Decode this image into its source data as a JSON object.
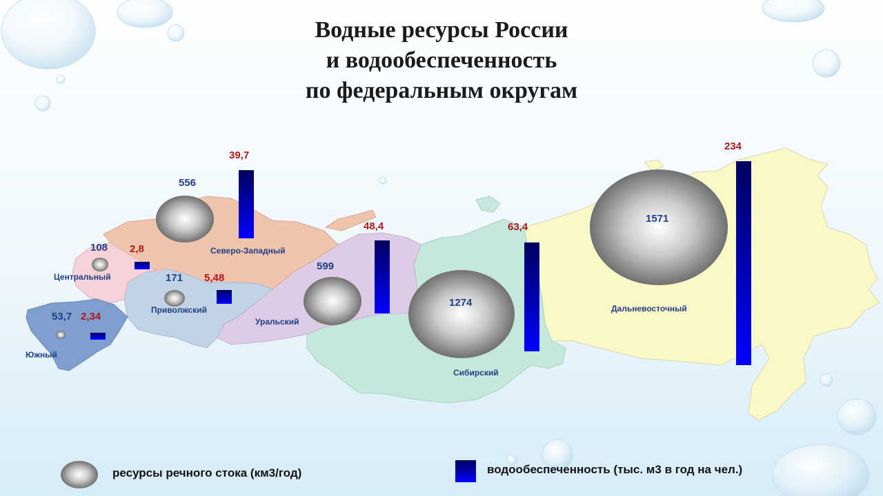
{
  "title": {
    "line1": "Водные ресурсы России",
    "line2": "и водообеспеченность",
    "line3": "по федеральным округам"
  },
  "regions": [
    {
      "name": "Южный",
      "runoff": "53,7",
      "supply": "2,34",
      "color": "#7f9fcf"
    },
    {
      "name": "Центральный",
      "runoff": "108",
      "supply": "2,8",
      "color": "#f6d2d8"
    },
    {
      "name": "Приволжский",
      "runoff": "171",
      "supply": "5,48",
      "color": "#c3d3e6"
    },
    {
      "name": "Северо-Западный",
      "runoff": "556",
      "supply": "39,7",
      "color": "#f0c3ad"
    },
    {
      "name": "Уральский",
      "runoff": "599",
      "supply": "48,4",
      "color": "#decbe6"
    },
    {
      "name": "Сибирский",
      "runoff": "1274",
      "supply": "63,4",
      "color": "#c6e8dc"
    },
    {
      "name": "Дальневосточный",
      "runoff": "1571",
      "supply": "234",
      "color": "#fbf8c8"
    }
  ],
  "legend": {
    "runoff_label": "ресурсы речного стока (км3/год)",
    "supply_label": "водообеспеченность (тыс. м3 в год на чел.)"
  },
  "colors": {
    "runoff_value": "#1f3f86",
    "supply_value": "#b0181b",
    "bar": "#0000cc"
  }
}
